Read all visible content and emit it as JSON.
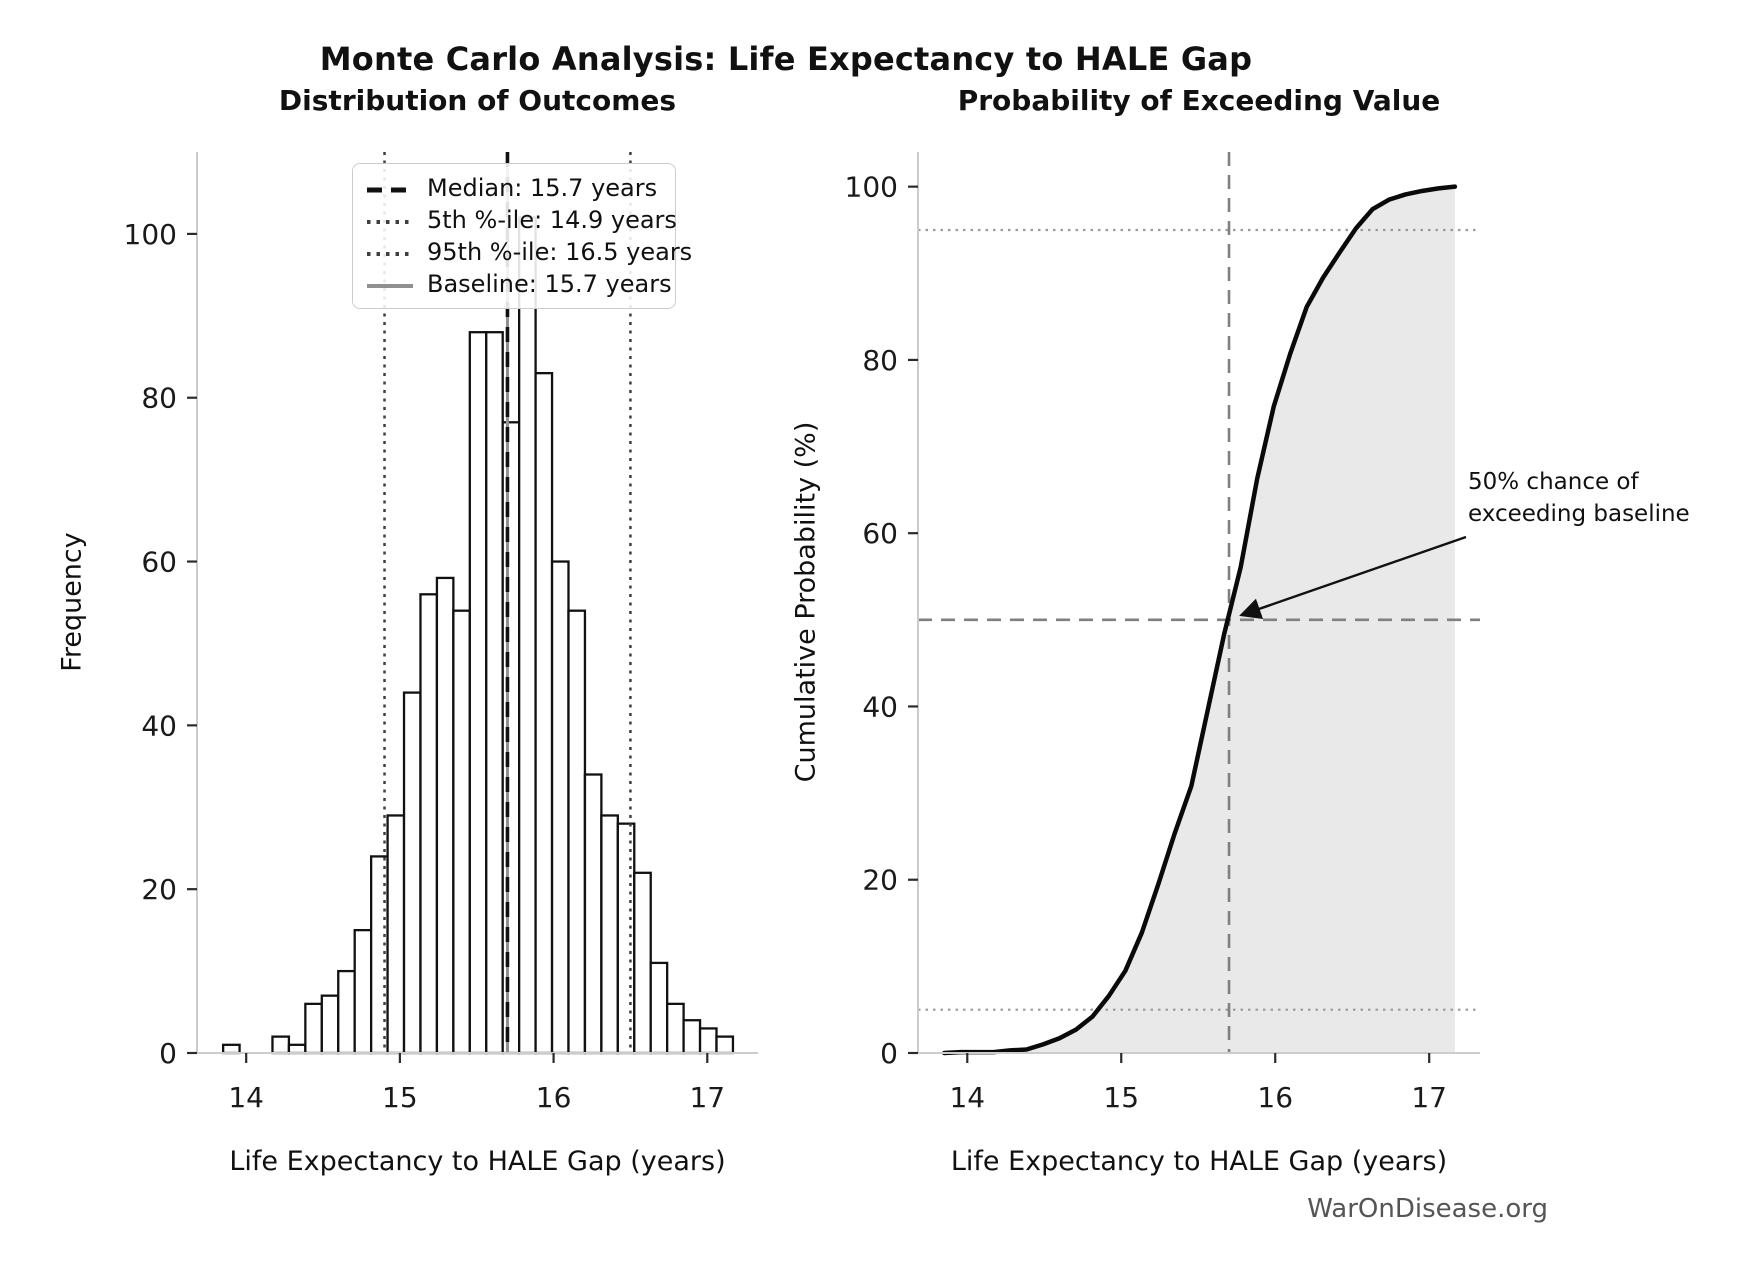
{
  "title": "Monte Carlo Analysis: Life Expectancy to HALE Gap",
  "watermark": "WarOnDisease.org",
  "colors": {
    "bar_fill": "#ffffff",
    "bar_edge": "#111111",
    "median_line": "#111111",
    "percentile_line": "#3f3f3f",
    "baseline_line": "#909090",
    "cdf_line": "#0a0a0a",
    "cdf_fill": "#e9e9e9",
    "guide_dashed": "#808080",
    "guide_dotted": "#9a9a9a",
    "spine": "#cccccc",
    "tick_label": "#1a1a1a",
    "watermark_color": "#555555"
  },
  "chart_data": [
    {
      "type": "bar",
      "title": "Distribution of Outcomes",
      "xlabel": "Life Expectancy to HALE Gap (years)",
      "ylabel": "Frequency",
      "xlim": [
        13.68,
        17.33
      ],
      "ylim": [
        0,
        110
      ],
      "xticks": [
        14,
        15,
        16,
        17
      ],
      "yticks": [
        0,
        20,
        40,
        60,
        80,
        100
      ],
      "grid": false,
      "legend_position": "upper-left",
      "bin_start": 13.85,
      "bin_width": 0.107,
      "frequencies": [
        1,
        0,
        0,
        2,
        1,
        6,
        7,
        10,
        15,
        24,
        29,
        44,
        56,
        58,
        54,
        88,
        88,
        77,
        102,
        83,
        60,
        54,
        34,
        29,
        28,
        22,
        11,
        6,
        4,
        3,
        2
      ],
      "median": 15.7,
      "p5": 14.9,
      "p95": 16.5,
      "baseline": 15.7,
      "legend": [
        {
          "label": "Median: 15.7 years",
          "style": "dashed-black"
        },
        {
          "label": "5th %-ile: 14.9 years",
          "style": "dotted-gray"
        },
        {
          "label": "95th %-ile: 16.5 years",
          "style": "dotted-gray"
        },
        {
          "label": "Baseline: 15.7 years",
          "style": "solid-gray"
        }
      ]
    },
    {
      "type": "line",
      "title": "Probability of Exceeding Value",
      "xlabel": "Life Expectancy to HALE Gap (years)",
      "ylabel": "Cumulative Probability (%)",
      "xlim": [
        13.68,
        17.33
      ],
      "ylim": [
        0,
        104
      ],
      "xticks": [
        14,
        15,
        16,
        17
      ],
      "yticks": [
        0,
        20,
        40,
        60,
        80,
        100
      ],
      "grid": false,
      "x": [
        13.85,
        13.957,
        14.064,
        14.171,
        14.278,
        14.385,
        14.492,
        14.599,
        14.706,
        14.813,
        14.92,
        15.027,
        15.134,
        15.241,
        15.348,
        15.455,
        15.562,
        15.669,
        15.776,
        15.883,
        15.99,
        16.097,
        16.204,
        16.311,
        16.418,
        16.525,
        16.632,
        16.739,
        16.846,
        16.953,
        17.06,
        17.167
      ],
      "y": [
        0,
        0.1,
        0.1,
        0.1,
        0.3,
        0.4,
        1.0,
        1.7,
        2.7,
        4.2,
        6.6,
        9.5,
        13.9,
        19.5,
        25.4,
        30.8,
        39.6,
        48.4,
        56.1,
        66.3,
        74.6,
        80.7,
        86.1,
        89.5,
        92.4,
        95.2,
        97.4,
        98.5,
        99.1,
        99.5,
        99.8,
        100
      ],
      "hline_dashed": 50,
      "hlines_dotted": [
        5,
        95
      ],
      "vline_dashed": 15.7,
      "annotation": {
        "text": "50% chance of\nexceeding baseline",
        "arrow_x": 15.74,
        "arrow_y": 51
      }
    }
  ]
}
